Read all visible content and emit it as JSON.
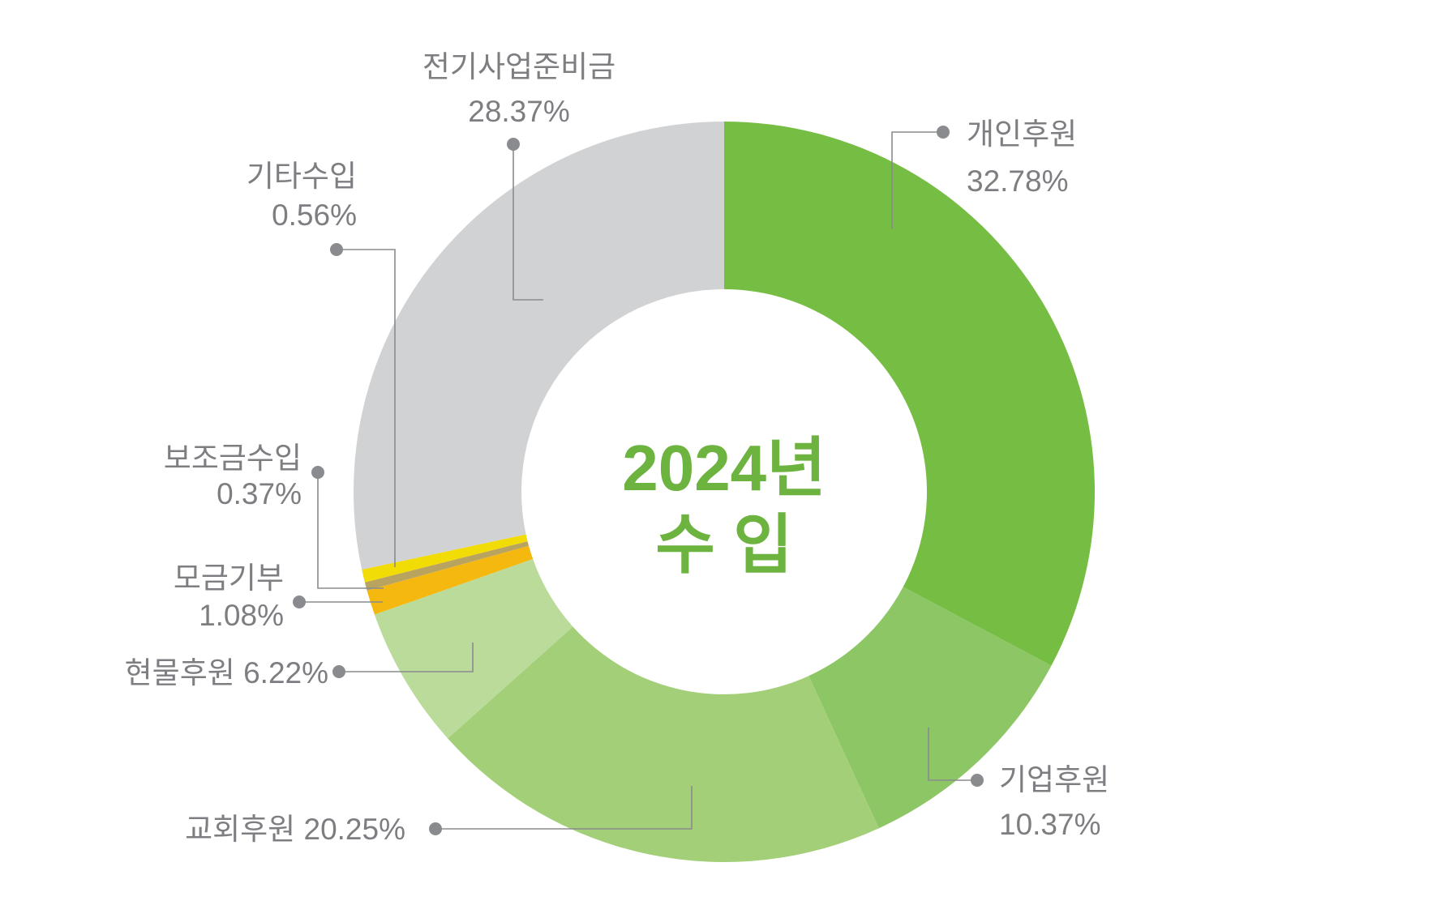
{
  "chart_data": {
    "type": "pie",
    "variant": "donut",
    "title_line1": "2024년",
    "title_line2": "수 입",
    "title_color": "#6cb33f",
    "label_color": "#7d7e82",
    "leader_color": "#8a8b8e",
    "slices": [
      {
        "name": "개인후원",
        "value": 32.78,
        "value_label": "32.78%",
        "color": "#76bd43"
      },
      {
        "name": "기업후원",
        "value": 10.37,
        "value_label": "10.37%",
        "color": "#8cc665"
      },
      {
        "name": "교회후원",
        "value": 20.25,
        "value_label": "20.25%",
        "color": "#a3cf78"
      },
      {
        "name": "현물후원",
        "value": 6.22,
        "value_label": "6.22%",
        "color": "#badb9a"
      },
      {
        "name": "모금기부",
        "value": 1.08,
        "value_label": "1.08%",
        "color": "#f5b80f"
      },
      {
        "name": "보조금수입",
        "value": 0.37,
        "value_label": "0.37%",
        "color": "#b9a45f"
      },
      {
        "name": "기타수입",
        "value": 0.56,
        "value_label": "0.56%",
        "color": "#f2dc05"
      },
      {
        "name": "전기사업준비금",
        "value": 28.37,
        "value_label": "28.37%",
        "color": "#d1d2d4"
      }
    ]
  }
}
